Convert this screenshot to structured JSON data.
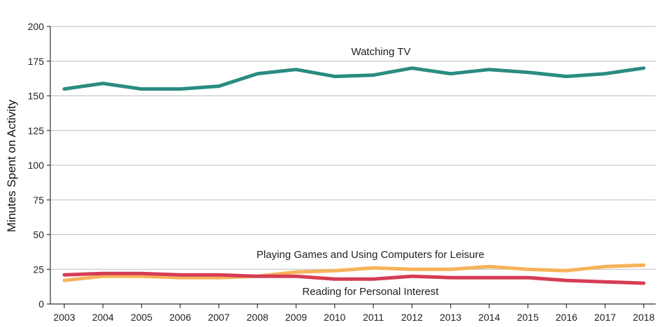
{
  "chart_data": {
    "type": "line",
    "title": "",
    "xlabel": "",
    "ylabel": "Minutes Spent on Activity",
    "x": [
      "2003",
      "2004",
      "2005",
      "2006",
      "2007",
      "2008",
      "2009",
      "2010",
      "2011",
      "2012",
      "2013",
      "2014",
      "2015",
      "2016",
      "2017",
      "2018"
    ],
    "ylim": [
      0,
      200
    ],
    "yticks": [
      "0",
      "25",
      "50",
      "75",
      "100",
      "125",
      "150",
      "175",
      "200"
    ],
    "grid": true,
    "series": [
      {
        "name": "Watching TV",
        "color": "#2a8c80",
        "values": [
          155,
          159,
          155,
          155,
          157,
          166,
          169,
          164,
          165,
          170,
          166,
          169,
          167,
          164,
          166,
          170
        ]
      },
      {
        "name": "Playing Games and Using Computers for Leisure",
        "color": "#f6b25a",
        "values": [
          17,
          20,
          20,
          19,
          19,
          20,
          23,
          24,
          26,
          25,
          25,
          27,
          25,
          24,
          27,
          28
        ]
      },
      {
        "name": "Reading for Personal Interest",
        "color": "#d63c55",
        "values": [
          21,
          22,
          22,
          21,
          21,
          20,
          20,
          18,
          18,
          20,
          19,
          19,
          19,
          17,
          16,
          15
        ]
      }
    ]
  }
}
